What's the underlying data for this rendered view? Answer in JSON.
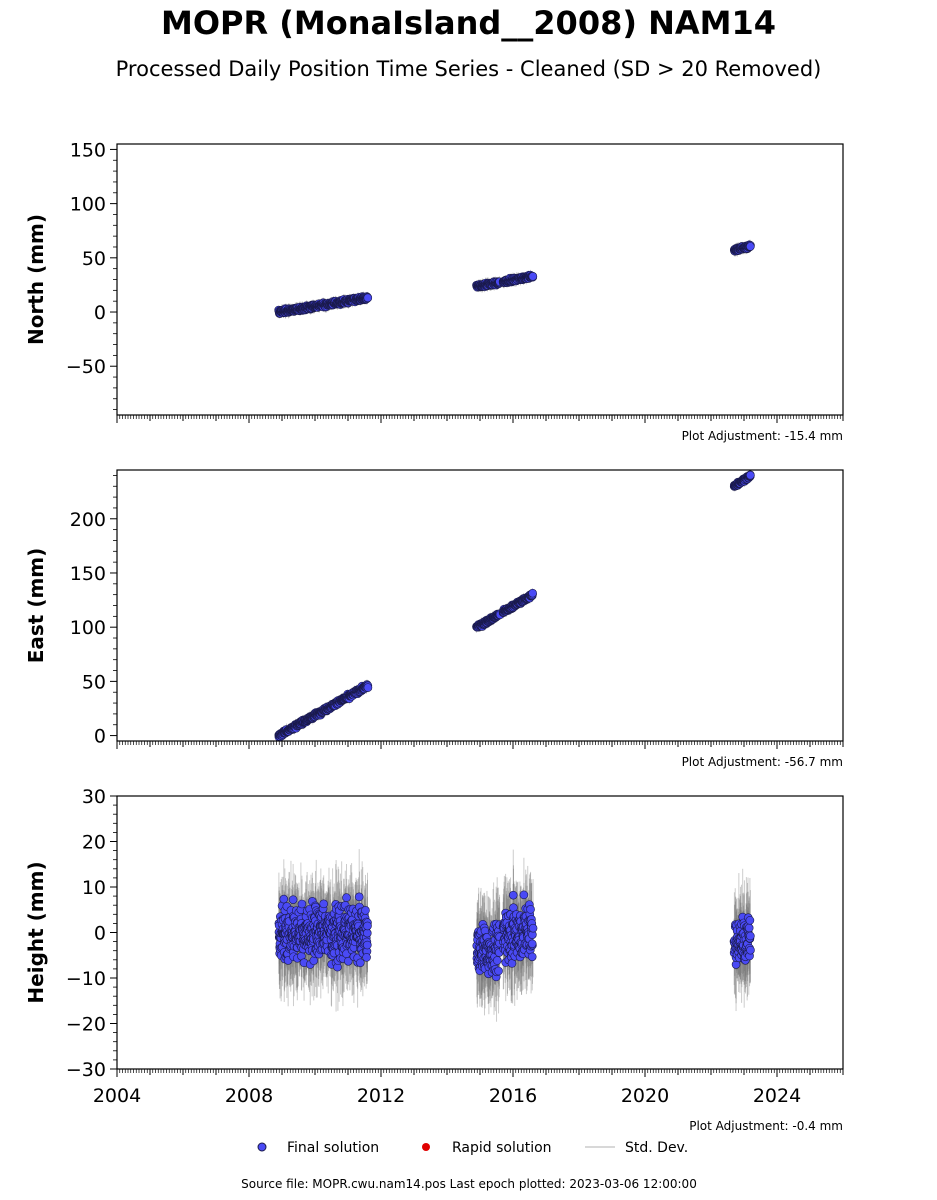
{
  "title": "MOPR (MonaIsland__2008) NAM14",
  "subtitle": "Processed Daily Position Time Series - Cleaned (SD > 20 Removed)",
  "colors": {
    "final": "#4a4af5",
    "rapid": "#e00000",
    "stddev": "#b0b0b0",
    "edge": "#1a1a4a"
  },
  "legend": {
    "final": "Final solution",
    "rapid": "Rapid solution",
    "stddev": "Std. Dev."
  },
  "source_note": "Source file: MOPR.cwu.nam14.pos  Last epoch plotted: 2023-03-06 12:00:00",
  "chart_data": [
    {
      "type": "scatter",
      "ylabel": "North (mm)",
      "xlim": [
        2004,
        2026
      ],
      "ylim": [
        -95,
        155
      ],
      "yticks": [
        -50,
        0,
        50,
        100,
        150
      ],
      "ytick_labels": [
        "−50",
        "0",
        "50",
        "100",
        "150"
      ],
      "adjustment": "Plot Adjustment: -15.4 mm",
      "segments": [
        {
          "x": [
            2008.9,
            2011.6
          ],
          "y": [
            0,
            13
          ],
          "spread": 2.5,
          "err": 4
        },
        {
          "x": [
            2014.9,
            2015.6
          ],
          "y": [
            24,
            27
          ],
          "spread": 2.0,
          "err": 4
        },
        {
          "x": [
            2015.7,
            2016.6
          ],
          "y": [
            28,
            33
          ],
          "spread": 2.0,
          "err": 4
        },
        {
          "x": [
            2022.7,
            2023.2
          ],
          "y": [
            57,
            61
          ],
          "spread": 2.0,
          "err": 4
        }
      ]
    },
    {
      "type": "scatter",
      "ylabel": "East (mm)",
      "xlim": [
        2004,
        2026
      ],
      "ylim": [
        -5,
        245
      ],
      "yticks": [
        0,
        50,
        100,
        150,
        200
      ],
      "ytick_labels": [
        "0",
        "50",
        "100",
        "150",
        "200"
      ],
      "adjustment": "Plot Adjustment: -56.7 mm",
      "segments": [
        {
          "x": [
            2008.9,
            2011.6
          ],
          "y": [
            0,
            46
          ],
          "spread": 2.5,
          "err": 4
        },
        {
          "x": [
            2014.9,
            2015.6
          ],
          "y": [
            100,
            112
          ],
          "spread": 2.0,
          "err": 4
        },
        {
          "x": [
            2015.7,
            2016.6
          ],
          "y": [
            114,
            130
          ],
          "spread": 2.0,
          "err": 4
        },
        {
          "x": [
            2022.7,
            2023.2
          ],
          "y": [
            230,
            240
          ],
          "spread": 2.0,
          "err": 4
        }
      ]
    },
    {
      "type": "scatter",
      "ylabel": "Height (mm)",
      "xlim": [
        2004,
        2026
      ],
      "ylim": [
        -30,
        30
      ],
      "yticks": [
        -30,
        -20,
        -10,
        0,
        10,
        20,
        30
      ],
      "ytick_labels": [
        "−30",
        "−20",
        "−10",
        "0",
        "10",
        "20",
        "30"
      ],
      "xticks": [
        2004,
        2008,
        2012,
        2016,
        2020,
        2024
      ],
      "xtick_labels": [
        "2004",
        "2008",
        "2012",
        "2016",
        "2020",
        "2024"
      ],
      "adjustment": "Plot Adjustment: -0.4 mm",
      "segments": [
        {
          "x": [
            2008.9,
            2011.6
          ],
          "y": [
            0,
            0
          ],
          "spread": 8.0,
          "err": 8
        },
        {
          "x": [
            2014.9,
            2015.6
          ],
          "y": [
            -4,
            -4
          ],
          "spread": 7.5,
          "err": 8
        },
        {
          "x": [
            2015.7,
            2016.6
          ],
          "y": [
            0,
            0
          ],
          "spread": 8.5,
          "err": 8
        },
        {
          "x": [
            2022.7,
            2023.2
          ],
          "y": [
            -2,
            -2
          ],
          "spread": 7.0,
          "err": 8
        }
      ]
    }
  ]
}
